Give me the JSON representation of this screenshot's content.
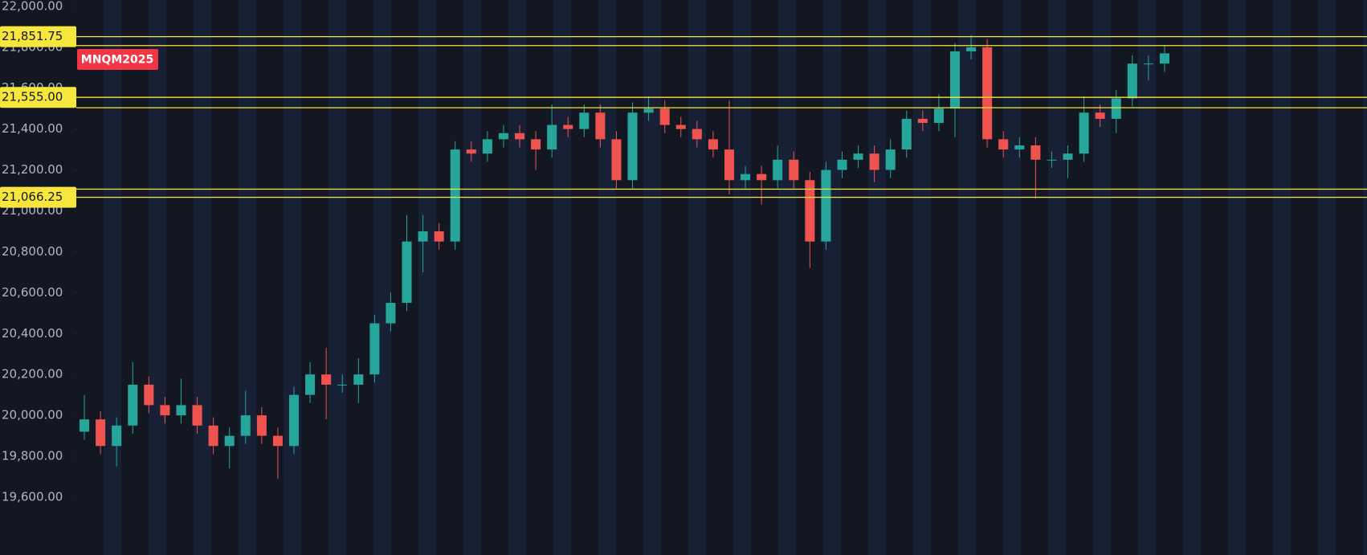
{
  "chart_data": {
    "type": "candlestick",
    "symbol": "MNQM2025",
    "ylim": [
      19317,
      22031
    ],
    "yticks": [
      {
        "value": 22000,
        "label": "22,000.00"
      },
      {
        "value": 21800,
        "label": "21,800.00"
      },
      {
        "value": 21600,
        "label": "21,600.00"
      },
      {
        "value": 21400,
        "label": "21,400.00"
      },
      {
        "value": 21200,
        "label": "21,200.00"
      },
      {
        "value": 21000,
        "label": "21,000.00"
      },
      {
        "value": 20800,
        "label": "20,800.00"
      },
      {
        "value": 20600,
        "label": "20,600.00"
      },
      {
        "value": 20400,
        "label": "20,400.00"
      },
      {
        "value": 20200,
        "label": "20,200.00"
      },
      {
        "value": 20000,
        "label": "20,000.00"
      },
      {
        "value": 19800,
        "label": "19,800.00"
      },
      {
        "value": 19600,
        "label": "19,600.00"
      }
    ],
    "levels": [
      {
        "value": 21851.75,
        "label": "21,851.75"
      },
      21808,
      {
        "value": 21555,
        "label": "21,555.00"
      },
      21504.25,
      21106,
      {
        "value": 21066.25,
        "label": "21,066.25"
      }
    ],
    "up_color": "#26a69a",
    "down_color": "#ef5350",
    "level_color": "#f7e63c",
    "open": [
      19920,
      19980,
      19850,
      19950,
      20150,
      20050,
      20000,
      20050,
      19950,
      19850,
      19900,
      20000,
      19900,
      19850,
      20100,
      20200,
      20150,
      20150,
      20200,
      20450,
      20550,
      20850,
      20900,
      20850,
      21300,
      21280,
      21350,
      21380,
      21350,
      21300,
      21420,
      21400,
      21480,
      21350,
      21150,
      21480,
      21500,
      21420,
      21400,
      21350,
      21300,
      21150,
      21180,
      21150,
      21250,
      21150,
      20850,
      21200,
      21250,
      21280,
      21200,
      21300,
      21450,
      21430,
      21500,
      21780,
      21800,
      21350,
      21300,
      21320,
      21250,
      21250,
      21280,
      21480,
      21450,
      21550,
      21720,
      21720
    ],
    "high": [
      20100,
      20020,
      19990,
      20260,
      20190,
      20090,
      20180,
      20090,
      19990,
      19940,
      20120,
      20040,
      19940,
      20140,
      20260,
      20330,
      20200,
      20280,
      20490,
      20600,
      20980,
      20980,
      20940,
      21340,
      21340,
      21390,
      21420,
      21420,
      21390,
      21520,
      21460,
      21520,
      21520,
      21390,
      21530,
      21560,
      21540,
      21460,
      21440,
      21390,
      21540,
      21220,
      21220,
      21320,
      21290,
      21190,
      21240,
      21290,
      21320,
      21320,
      21350,
      21490,
      21490,
      21570,
      21820,
      21860,
      21840,
      21390,
      21360,
      21360,
      21290,
      21320,
      21560,
      21520,
      21590,
      21760,
      21760,
      21810
    ],
    "low": [
      19880,
      19810,
      19750,
      19910,
      20010,
      19960,
      19960,
      19910,
      19810,
      19740,
      19860,
      19860,
      19690,
      19810,
      20060,
      19980,
      20110,
      20060,
      20160,
      20410,
      20510,
      20700,
      20810,
      20810,
      21240,
      21240,
      21310,
      21310,
      21200,
      21260,
      21360,
      21360,
      21310,
      21110,
      21110,
      21440,
      21380,
      21360,
      21310,
      21260,
      21080,
      21110,
      21030,
      21110,
      21110,
      20720,
      20810,
      21160,
      21210,
      21140,
      21160,
      21260,
      21390,
      21390,
      21360,
      21740,
      21310,
      21260,
      21260,
      21060,
      21210,
      21160,
      21240,
      21410,
      21380,
      21510,
      21640,
      21680
    ],
    "close": [
      19980,
      19850,
      19950,
      20150,
      20050,
      20000,
      20050,
      19950,
      19850,
      19900,
      20000,
      19900,
      19850,
      20100,
      20200,
      20150,
      20150,
      20200,
      20450,
      20550,
      20850,
      20900,
      20850,
      21300,
      21280,
      21350,
      21380,
      21350,
      21300,
      21420,
      21400,
      21480,
      21350,
      21150,
      21480,
      21500,
      21420,
      21400,
      21350,
      21300,
      21150,
      21180,
      21150,
      21250,
      21150,
      20850,
      21200,
      21250,
      21280,
      21200,
      21300,
      21450,
      21430,
      21500,
      21780,
      21800,
      21350,
      21300,
      21320,
      21250,
      21250,
      21280,
      21480,
      21450,
      21550,
      21720,
      21720,
      21770
    ]
  }
}
